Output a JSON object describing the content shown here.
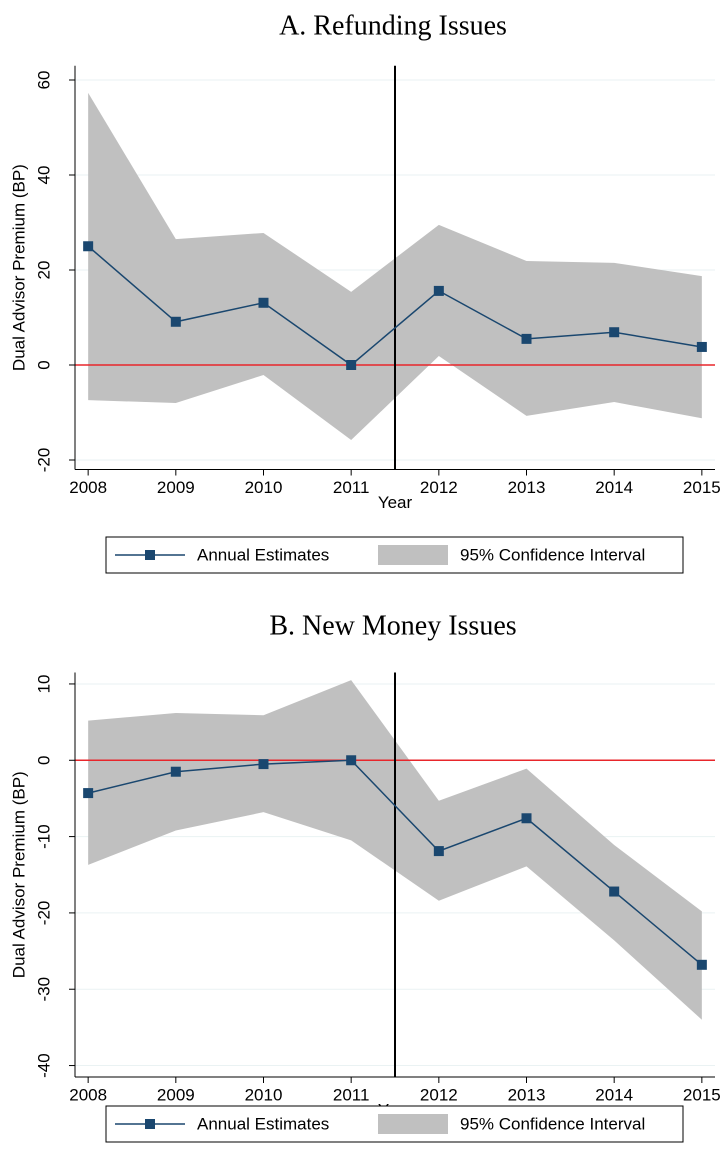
{
  "chart_data": [
    {
      "type": "line",
      "title": "A. Refunding Issues",
      "x_label": "Year",
      "y_label": "Dual Advisor Premium (BP)",
      "x": [
        2008,
        2009,
        2010,
        2011,
        2012,
        2013,
        2014,
        2015
      ],
      "series": [
        {
          "name": "Annual Estimates",
          "color": "#1a476f",
          "values": [
            25.0,
            9.1,
            13.1,
            0,
            15.6,
            5.5,
            6.9,
            3.8
          ]
        }
      ],
      "band": {
        "name": "95% Confidence Interval",
        "color": "#c0c0c0",
        "lower": [
          -7.4,
          -8.0,
          -2.1,
          -15.8,
          1.9,
          -10.7,
          -7.8,
          -11.2
        ],
        "upper": [
          57.3,
          26.5,
          27.8,
          15.4,
          29.5,
          21.9,
          21.5,
          18.7
        ]
      },
      "hline": 0,
      "hline_color": "#e8262b",
      "vline": 2011.5,
      "vline_color": "#000000",
      "xlim": [
        2007.85,
        2015.15
      ],
      "xticks": [
        2008,
        2009,
        2010,
        2011,
        2012,
        2013,
        2014,
        2015
      ],
      "ylim": [
        -22,
        63
      ],
      "yticks": [
        -20,
        0,
        20,
        40,
        60
      ],
      "grid": true
    },
    {
      "type": "line",
      "title": "B. New Money Issues",
      "x_label": "Year",
      "y_label": "Dual Advisor Premium (BP)",
      "x": [
        2008,
        2009,
        2010,
        2011,
        2012,
        2013,
        2014,
        2015
      ],
      "series": [
        {
          "name": "Annual Estimates",
          "color": "#1a476f",
          "values": [
            -4.3,
            -1.5,
            -0.5,
            0,
            -11.9,
            -7.6,
            -17.2,
            -26.8
          ]
        }
      ],
      "band": {
        "name": "95% Confidence Interval",
        "color": "#c0c0c0",
        "lower": [
          -13.7,
          -9.2,
          -6.8,
          -10.5,
          -18.4,
          -13.9,
          -23.6,
          -34.0
        ],
        "upper": [
          5.2,
          6.2,
          5.9,
          10.5,
          -5.3,
          -1.1,
          -11.1,
          -19.8
        ]
      },
      "hline": 0,
      "hline_color": "#e8262b",
      "vline": 2011.5,
      "vline_color": "#000000",
      "xlim": [
        2007.85,
        2015.15
      ],
      "xticks": [
        2008,
        2009,
        2010,
        2011,
        2012,
        2013,
        2014,
        2015
      ],
      "ylim": [
        -41.5,
        11.5
      ],
      "yticks": [
        -40,
        -30,
        -20,
        -10,
        0,
        10
      ],
      "grid": true
    }
  ]
}
